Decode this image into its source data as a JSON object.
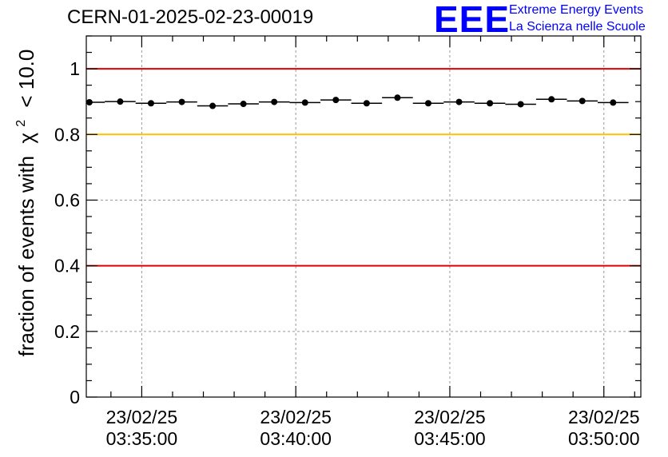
{
  "header": {
    "title": "CERN-01-2025-02-23-00019",
    "logo_mark": "EEE",
    "logo_line1": "Extreme Energy Events",
    "logo_line2": "La Scienza nelle Scuole"
  },
  "colors": {
    "threshold_red": "#e00000",
    "threshold_yellow": "#ffc000",
    "points": "#000000",
    "logo": "#0000ff"
  },
  "chart_data": {
    "type": "scatter",
    "title": "CERN-01-2025-02-23-00019",
    "xlabel": "",
    "ylabel": "fraction of events with",
    "ylabel_chi": "χ",
    "ylabel_sup": "2",
    "ylabel_tail": "< 10.0",
    "ylim": [
      0,
      1.1
    ],
    "yticks": [
      0,
      0.2,
      0.4,
      0.6,
      0.8,
      1
    ],
    "ytick_labels": [
      "0",
      "0.2",
      "0.4",
      "0.6",
      "0.8",
      "1"
    ],
    "xlim_minutes": [
      -1.8,
      16.2
    ],
    "xtick_minutes": [
      0,
      5,
      10,
      15
    ],
    "xtick_labels_date": [
      "23/02/25",
      "23/02/25",
      "23/02/25",
      "23/02/25"
    ],
    "xtick_labels_time": [
      "03:35:00",
      "03:40:00",
      "03:45:00",
      "03:50:00"
    ],
    "grid": true,
    "reference_lines": [
      {
        "y": 1.0,
        "color": "red"
      },
      {
        "y": 0.8,
        "color": "yellow"
      },
      {
        "y": 0.4,
        "color": "red"
      }
    ],
    "bin_width_minutes": 1,
    "x_minutes": [
      -1.7,
      -0.7,
      0.3,
      1.3,
      2.3,
      3.3,
      4.3,
      5.3,
      6.3,
      7.3,
      8.3,
      9.3,
      10.3,
      11.3,
      12.3,
      13.3,
      14.3,
      15.3
    ],
    "values": [
      0.898,
      0.9,
      0.895,
      0.899,
      0.887,
      0.893,
      0.899,
      0.897,
      0.905,
      0.895,
      0.912,
      0.895,
      0.899,
      0.895,
      0.892,
      0.907,
      0.902,
      0.897
    ]
  }
}
